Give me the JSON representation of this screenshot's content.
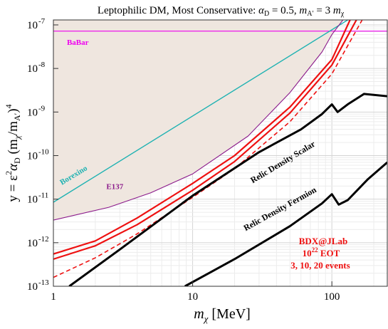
{
  "chart_data": {
    "type": "line",
    "title": "Leptophilic DM, Most Conservative:  α_D = 0.5,  m_A′ = 3 m_χ",
    "title_parts": {
      "prefix": "Leptophilic DM, Most Conservative:  ",
      "alpha": "α",
      "alpha_sub": "D",
      "alpha_value": " = 0.5,  ",
      "m": "m",
      "m_sub": "A′",
      "m_eq": " = 3 ",
      "m2": "m",
      "m2_sub": "χ"
    },
    "xlabel": "m_χ [MeV]",
    "xlabel_parts": {
      "m": "m",
      "sub": "χ",
      "unit": " [MeV]"
    },
    "ylabel": "y = ε²α_D (m_χ/m_A′)⁴",
    "ylabel_parts": {
      "prefix": "y = ε",
      "exp2": "2",
      "alpha": "α",
      "alpha_sub": "D",
      "open": " (m",
      "chi": "χ",
      "mid": "/m",
      "aprime": "A′",
      "close": ")",
      "exp4": "4"
    },
    "x_scale": "log",
    "y_scale": "log",
    "xlim": [
      1,
      250
    ],
    "ylim": [
      1e-13,
      1.3e-07
    ],
    "grid": true,
    "x_ticks": [
      {
        "value": 1,
        "label": "1"
      },
      {
        "value": 10,
        "label": "10"
      },
      {
        "value": 100,
        "label": "100"
      }
    ],
    "y_ticks": [
      {
        "value": 1e-13,
        "base": "10",
        "exp": "-13"
      },
      {
        "value": 1e-12,
        "base": "10",
        "exp": "-12"
      },
      {
        "value": 1e-11,
        "base": "10",
        "exp": "-11"
      },
      {
        "value": 1e-10,
        "base": "10",
        "exp": "-10"
      },
      {
        "value": 1e-09,
        "base": "10",
        "exp": "-9"
      },
      {
        "value": 1e-08,
        "base": "10",
        "exp": "-8"
      },
      {
        "value": 1e-07,
        "base": "10",
        "exp": "-7"
      }
    ],
    "excluded_region": {
      "color": "#efe6df",
      "upper_y": 1.3e-07,
      "lower_boundary": [
        [
          1,
          3.3e-12
        ],
        [
          2.5,
          6.5e-12
        ],
        [
          5,
          1.4e-11
        ],
        [
          10,
          3.8e-11
        ],
        [
          25,
          2.8e-10
        ],
        [
          50,
          2.8e-09
        ],
        [
          85,
          2.4e-08
        ],
        [
          100,
          6e-08
        ],
        [
          120,
          1.3e-07
        ]
      ]
    },
    "series": [
      {
        "name": "BaBar",
        "color": "#ee00ee",
        "width": 1.1,
        "dash": "",
        "points": [
          [
            1,
            7.2e-08
          ],
          [
            250,
            7.2e-08
          ]
        ]
      },
      {
        "name": "Borexino",
        "color": "#1fb2b2",
        "width": 1.4,
        "dash": "",
        "points": [
          [
            1,
            8.5e-12
          ],
          [
            130,
            1.3e-07
          ]
        ]
      },
      {
        "name": "E137",
        "color": "#8b1a8b",
        "width": 1.1,
        "dash": "",
        "points": [
          [
            1,
            3.3e-12
          ],
          [
            2.5,
            6.5e-12
          ],
          [
            5,
            1.4e-11
          ],
          [
            10,
            3.8e-11
          ],
          [
            25,
            2.8e-10
          ],
          [
            50,
            2.8e-09
          ],
          [
            85,
            2.4e-08
          ],
          [
            100,
            6e-08
          ],
          [
            120,
            1.3e-07
          ]
        ]
      },
      {
        "name": "BDX@JLab 3 events",
        "color": "#ee1111",
        "width": 2.2,
        "dash": "",
        "points": [
          [
            1,
            5.5e-13
          ],
          [
            2,
            1.1e-12
          ],
          [
            4,
            3.7e-12
          ],
          [
            10,
            2.3e-11
          ],
          [
            20,
            1e-10
          ],
          [
            50,
            1.3e-09
          ],
          [
            100,
            1.6e-08
          ],
          [
            135,
            1.3e-07
          ]
        ]
      },
      {
        "name": "BDX@JLab 10 events",
        "color": "#ee1111",
        "width": 2.2,
        "dash": "",
        "points": [
          [
            1,
            4.2e-13
          ],
          [
            2,
            8.5e-13
          ],
          [
            4,
            2.6e-12
          ],
          [
            10,
            1.6e-11
          ],
          [
            20,
            7.3e-11
          ],
          [
            50,
            9.5e-10
          ],
          [
            100,
            1.2e-08
          ],
          [
            150,
            1.3e-07
          ]
        ]
      },
      {
        "name": "BDX@JLab 20 events",
        "color": "#ee1111",
        "width": 1.6,
        "dash": "6,4",
        "points": [
          [
            1,
            1.6e-13
          ],
          [
            2,
            4.5e-13
          ],
          [
            4,
            1.6e-12
          ],
          [
            10,
            1.1e-11
          ],
          [
            20,
            5e-11
          ],
          [
            50,
            6e-10
          ],
          [
            100,
            7.5e-09
          ],
          [
            165,
            1.3e-07
          ]
        ]
      },
      {
        "name": "Relic Density Scalar",
        "color": "#000000",
        "width": 3,
        "dash": "",
        "points": [
          [
            1.3,
            1e-13
          ],
          [
            3,
            7e-13
          ],
          [
            10,
            1.2e-11
          ],
          [
            30,
            1.2e-10
          ],
          [
            60,
            4e-10
          ],
          [
            85,
            9e-10
          ],
          [
            100,
            1.5e-09
          ],
          [
            110,
            1e-09
          ],
          [
            130,
            1.5e-09
          ],
          [
            170,
            2.6e-09
          ],
          [
            250,
            2.3e-09
          ]
        ]
      },
      {
        "name": "Relic Density Fermion",
        "color": "#000000",
        "width": 3,
        "dash": "",
        "points": [
          [
            8.8,
            1e-13
          ],
          [
            20,
            4.2e-13
          ],
          [
            50,
            2.4e-12
          ],
          [
            85,
            8e-12
          ],
          [
            100,
            1.3e-11
          ],
          [
            112,
            7.5e-12
          ],
          [
            130,
            9.5e-12
          ],
          [
            180,
            2.8e-11
          ],
          [
            250,
            7e-11
          ]
        ]
      }
    ],
    "annotations": [
      {
        "text": "BaBar",
        "x": 1.25,
        "y": 3.5e-08,
        "color": "#ee00ee",
        "rotate": 0,
        "size": 11,
        "bold": true
      },
      {
        "text": "Borexino",
        "x": 1.15,
        "y": 2.1e-11,
        "color": "#1fb2b2",
        "rotate": -31,
        "size": 11,
        "bold": true
      },
      {
        "text": "E137",
        "x": 2.4,
        "y": 1.7e-11,
        "color": "#8b1a8b",
        "rotate": 0,
        "size": 11,
        "bold": true
      },
      {
        "text": "Relic Density Scalar",
        "x": 27,
        "y": 2.3e-11,
        "color": "#000000",
        "rotate": -31,
        "size": 12,
        "bold": true
      },
      {
        "text": "Relic Density Fermion",
        "x": 24,
        "y": 1.85e-12,
        "color": "#000000",
        "rotate": -29,
        "size": 12,
        "bold": true
      }
    ],
    "bdx_label": {
      "line1": "BDX@JLab",
      "line2_base": "10",
      "line2_exp": "22",
      "line2_rest": "  EOT",
      "line3": "3, 10, 20 events",
      "color": "#ee1111"
    }
  }
}
